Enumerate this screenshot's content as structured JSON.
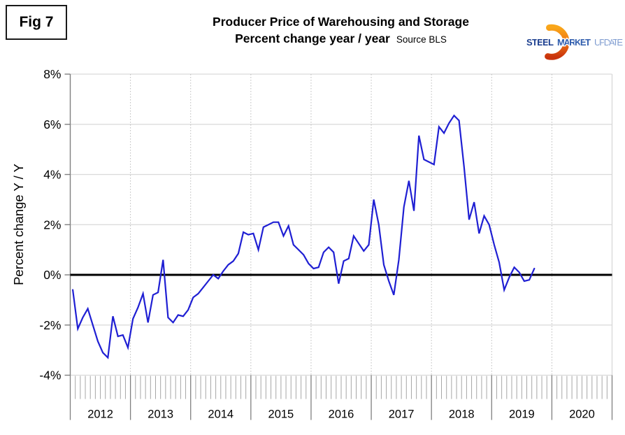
{
  "figure_label": "Fig 7",
  "title": {
    "line1": "Producer Price of Warehousing and Storage",
    "line2": "Percent change year / year",
    "source": "Source BLS"
  },
  "logo": {
    "word1": "STEEL",
    "word2": "MARKET",
    "word3": "UPDATE"
  },
  "y_axis": {
    "title": "Percent change Y / Y",
    "tick_labels": [
      "8%",
      "6%",
      "4%",
      "2%",
      "0%",
      "-2%",
      "-4%"
    ]
  },
  "x_axis": {
    "year_labels": [
      "2012",
      "2013",
      "2014",
      "2015",
      "2016",
      "2017",
      "2018",
      "2019",
      "2020"
    ]
  },
  "colors": {
    "line": "#1f1fd3",
    "zero_line": "#000000",
    "grid": "#d9d9d9",
    "grid_dotted": "#bbbbbb",
    "axis": "#7f7f7f",
    "tick_minor": "#a6a6a6",
    "tick_year": "#7f7f7f",
    "label_text": "#000000",
    "logo_orange_top": "#f9a61a",
    "logo_orange_mid": "#ef7512",
    "logo_orange_bottom": "#c9330c",
    "logo_steel": "#1b3e8f",
    "logo_market": "#2e5cad",
    "logo_update": "#7f9cd0"
  },
  "chart_data": {
    "type": "line",
    "title": "Producer Price of Warehousing and Storage — Percent change year / year",
    "source": "BLS",
    "xlabel": "",
    "ylabel": "Percent change Y / Y",
    "ylim": [
      -4,
      8
    ],
    "y_ticks": [
      8,
      6,
      4,
      2,
      0,
      -2,
      -4
    ],
    "x_years": [
      2012,
      2013,
      2014,
      2015,
      2016,
      2017,
      2018,
      2019,
      2020
    ],
    "frequency": "monthly",
    "series_start": "2012-01",
    "legend": "off",
    "grid": "horizontal solid, vertical dotted at year boundaries",
    "series": [
      {
        "name": "PPI Warehousing and Storage, % change Y/Y",
        "values": [
          -0.6,
          -2.15,
          -1.7,
          -1.35,
          -2.0,
          -2.65,
          -3.1,
          -3.3,
          -1.65,
          -2.45,
          -2.4,
          -2.9,
          -1.75,
          -1.3,
          -0.75,
          -1.9,
          -0.8,
          -0.7,
          0.6,
          -1.7,
          -1.9,
          -1.6,
          -1.65,
          -1.4,
          -0.9,
          -0.75,
          -0.5,
          -0.25,
          0.0,
          -0.15,
          0.15,
          0.4,
          0.55,
          0.85,
          1.7,
          1.6,
          1.65,
          1.0,
          1.9,
          2.0,
          2.1,
          2.1,
          1.55,
          1.95,
          1.2,
          1.0,
          0.8,
          0.45,
          0.25,
          0.3,
          0.9,
          1.1,
          0.9,
          -0.35,
          0.55,
          0.65,
          1.55,
          1.25,
          0.95,
          1.2,
          3.0,
          2.0,
          0.4,
          -0.25,
          -0.8,
          0.6,
          2.7,
          3.75,
          2.55,
          5.55,
          4.6,
          4.5,
          4.4,
          5.9,
          5.65,
          6.05,
          6.35,
          6.15,
          4.3,
          2.2,
          2.9,
          1.65,
          2.35,
          2.0,
          1.2,
          0.5,
          -0.6,
          -0.1,
          0.3,
          0.1,
          -0.25,
          -0.2,
          0.25
        ]
      }
    ]
  }
}
